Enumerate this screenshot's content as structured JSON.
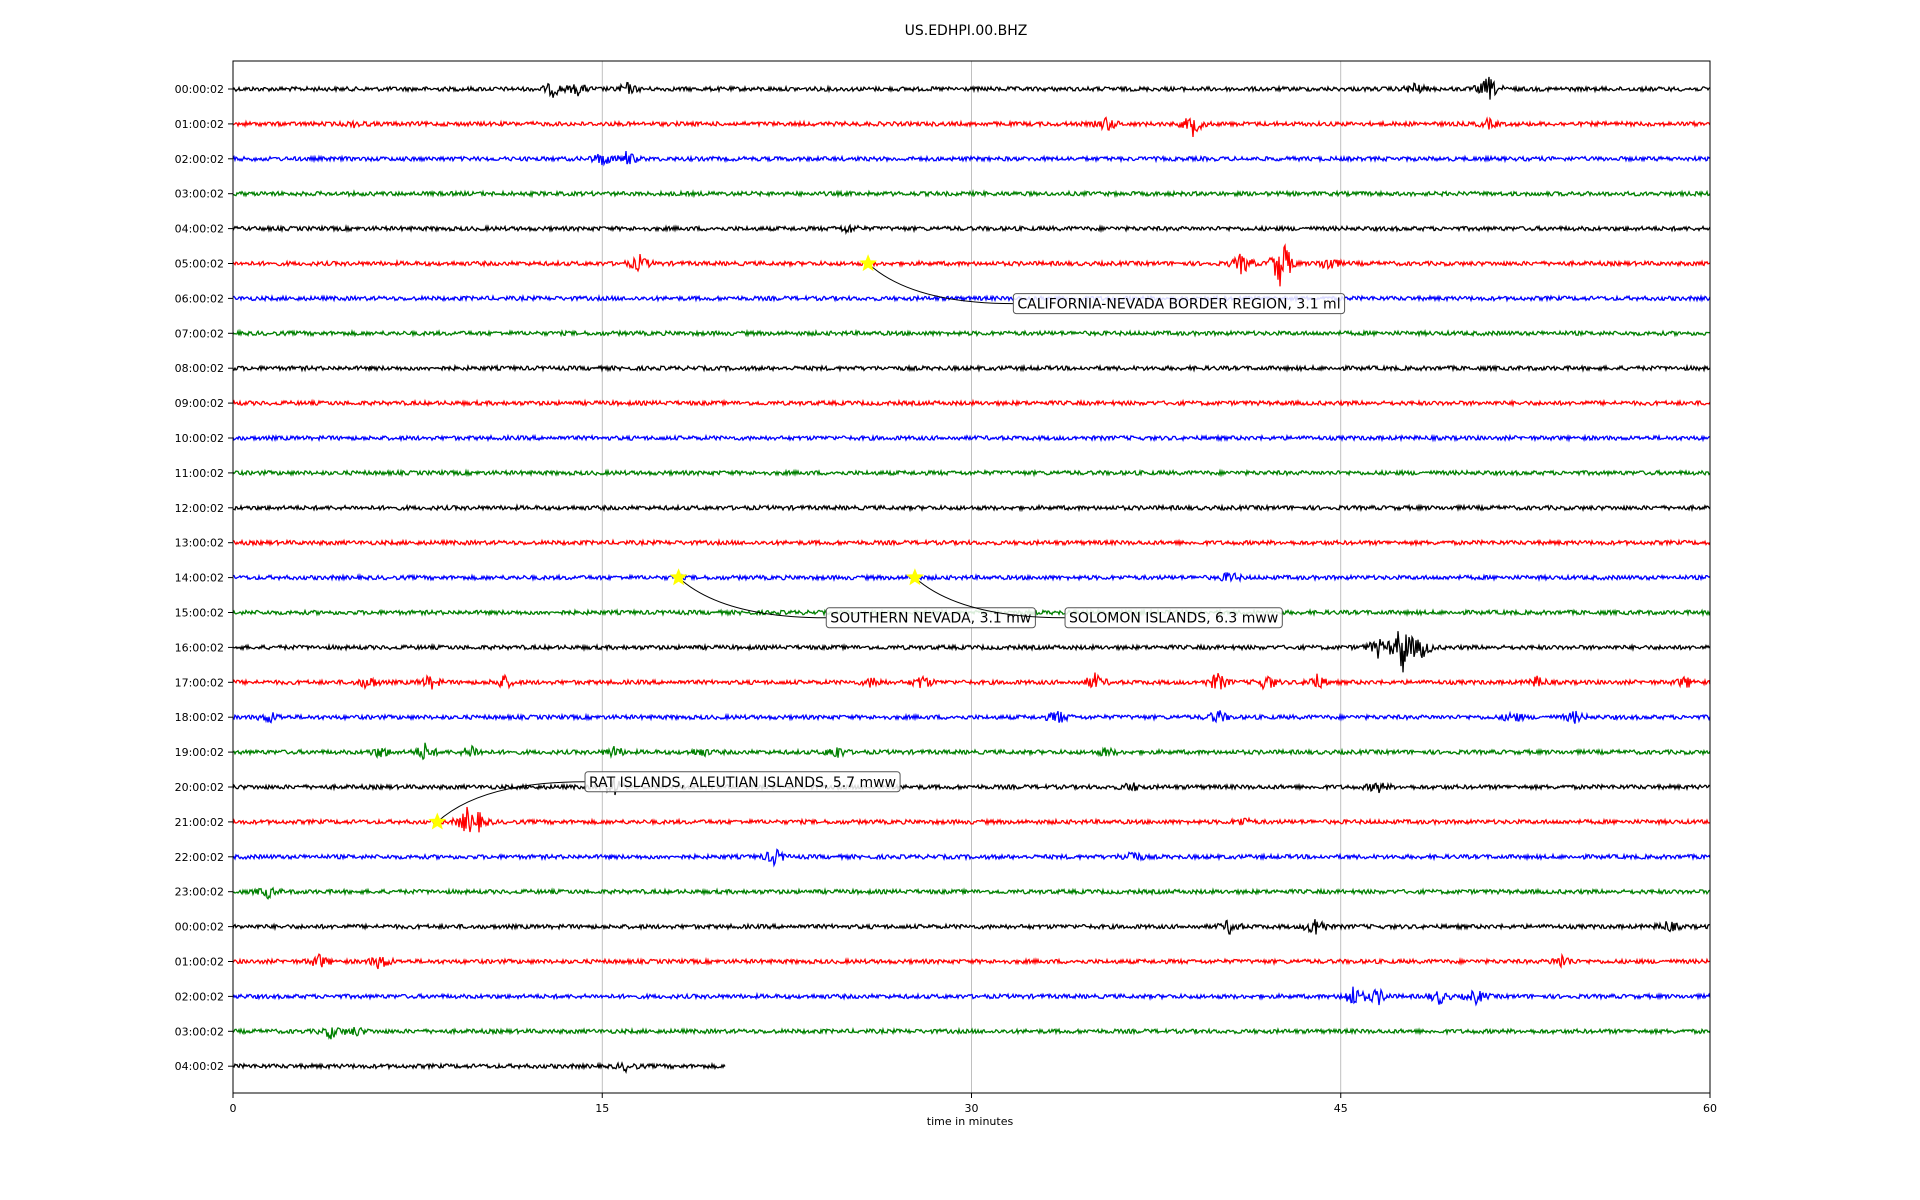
{
  "chart_data": {
    "type": "line",
    "title": "US.EDHPI.00.BHZ",
    "xlabel": "time in minutes",
    "ylabel": "",
    "xlim": [
      0,
      60
    ],
    "x_ticks": [
      0,
      15,
      30,
      45,
      60
    ],
    "grid": "vertical",
    "colors": [
      "#000000",
      "#ff0000",
      "#0000ff",
      "#008000"
    ],
    "marker_color": "#ffff00",
    "rows": [
      {
        "label": "00:00:02",
        "events": [
          [
            13,
            0.5
          ],
          [
            14,
            0.4
          ],
          [
            16,
            0.4
          ],
          [
            48,
            0.4
          ],
          [
            51,
            0.9
          ]
        ]
      },
      {
        "label": "01:00:02",
        "events": [
          [
            5,
            0.2
          ],
          [
            35.5,
            0.5
          ],
          [
            39,
            0.8
          ],
          [
            51,
            0.3
          ]
        ]
      },
      {
        "label": "02:00:02",
        "events": [
          [
            15,
            0.5
          ],
          [
            16,
            0.5
          ]
        ]
      },
      {
        "label": "03:00:02",
        "events": []
      },
      {
        "label": "04:00:02",
        "events": [
          [
            25,
            0.3
          ]
        ]
      },
      {
        "label": "05:00:02",
        "events": [
          [
            16.5,
            0.6
          ],
          [
            41,
            0.8
          ],
          [
            42.6,
            2.2
          ],
          [
            44.5,
            0.6
          ]
        ]
      },
      {
        "label": "06:00:02",
        "events": []
      },
      {
        "label": "07:00:02",
        "events": []
      },
      {
        "label": "08:00:02",
        "events": []
      },
      {
        "label": "09:00:02",
        "events": []
      },
      {
        "label": "10:00:02",
        "events": []
      },
      {
        "label": "11:00:02",
        "events": []
      },
      {
        "label": "12:00:02",
        "events": []
      },
      {
        "label": "13:00:02",
        "events": []
      },
      {
        "label": "14:00:02",
        "events": [
          [
            40.5,
            0.4
          ]
        ]
      },
      {
        "label": "15:00:02",
        "events": []
      },
      {
        "label": "16:00:02",
        "events": [
          [
            46.5,
            0.7
          ],
          [
            47.5,
            2.2
          ],
          [
            48.3,
            0.8
          ]
        ]
      },
      {
        "label": "17:00:02",
        "events": [
          [
            5.5,
            0.5
          ],
          [
            8,
            0.5
          ],
          [
            11,
            0.5
          ],
          [
            26,
            0.4
          ],
          [
            28,
            0.5
          ],
          [
            35,
            0.6
          ],
          [
            40,
            0.7
          ],
          [
            42,
            0.6
          ],
          [
            44,
            0.6
          ],
          [
            53,
            0.4
          ],
          [
            59,
            0.4
          ]
        ]
      },
      {
        "label": "18:00:02",
        "events": [
          [
            1.5,
            0.4
          ],
          [
            33.5,
            0.5
          ],
          [
            40,
            0.5
          ],
          [
            52,
            0.4
          ],
          [
            54.5,
            0.4
          ]
        ]
      },
      {
        "label": "19:00:02",
        "events": [
          [
            6,
            0.4
          ],
          [
            7.8,
            0.6
          ],
          [
            9.7,
            0.5
          ],
          [
            15.5,
            0.4
          ],
          [
            19,
            0.3
          ],
          [
            24.5,
            0.5
          ],
          [
            35.5,
            0.3
          ]
        ]
      },
      {
        "label": "20:00:02",
        "events": [
          [
            15.5,
            0.6
          ],
          [
            36.5,
            0.3
          ],
          [
            46.5,
            0.4
          ]
        ]
      },
      {
        "label": "21:00:02",
        "events": [
          [
            9.5,
            0.9
          ],
          [
            10,
            0.5
          ],
          [
            41,
            0.3
          ]
        ]
      },
      {
        "label": "22:00:02",
        "events": [
          [
            22,
            0.6
          ],
          [
            36.5,
            0.5
          ]
        ]
      },
      {
        "label": "23:00:02",
        "events": [
          [
            1.4,
            0.4
          ]
        ]
      },
      {
        "label": "00:00:02",
        "events": [
          [
            40.5,
            0.5
          ],
          [
            44,
            0.8
          ],
          [
            58.3,
            0.4
          ]
        ]
      },
      {
        "label": "01:00:02",
        "events": [
          [
            3.5,
            0.5
          ],
          [
            6,
            0.6
          ],
          [
            54,
            0.5
          ]
        ]
      },
      {
        "label": "02:00:02",
        "events": [
          [
            45.5,
            0.8
          ],
          [
            46.5,
            0.6
          ],
          [
            49,
            0.5
          ],
          [
            50.5,
            0.5
          ]
        ]
      },
      {
        "label": "03:00:02",
        "events": [
          [
            4,
            0.5
          ],
          [
            5,
            0.3
          ]
        ]
      },
      {
        "label": "04:00:02",
        "events": [
          [
            16,
            0.3
          ]
        ],
        "end_minute": 20
      }
    ],
    "annotations": [
      {
        "text": "CALIFORNIA-NEVADA BORDER REGION, 3.1 ml",
        "row": 5,
        "minute": 25.8,
        "label_row": 6.15,
        "label_minute": 31.7
      },
      {
        "text": "SOUTHERN NEVADA, 3.1 mw",
        "row": 14,
        "minute": 18.1,
        "label_row": 15.15,
        "label_minute": 24.1
      },
      {
        "text": "SOLOMON ISLANDS, 6.3 mww",
        "row": 14,
        "minute": 27.7,
        "label_row": 15.15,
        "label_minute": 33.8
      },
      {
        "text": "RAT ISLANDS, ALEUTIAN ISLANDS, 5.7 mww",
        "row": 21,
        "minute": 8.3,
        "label_row": 19.85,
        "label_minute": 14.3
      }
    ]
  }
}
